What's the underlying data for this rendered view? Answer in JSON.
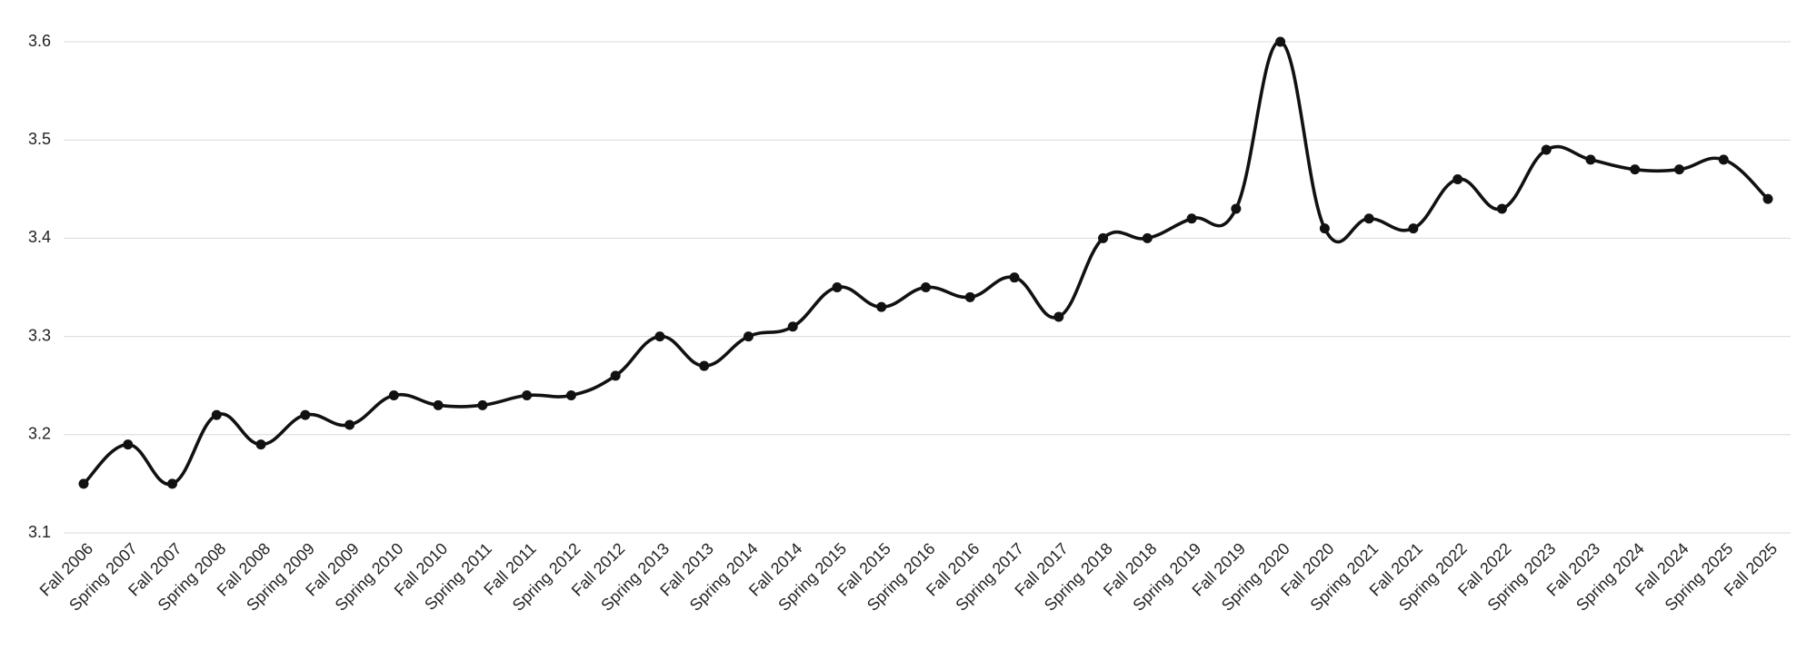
{
  "chart_data": {
    "type": "line",
    "categories": [
      "Fall 2006",
      "Spring 2007",
      "Fall 2007",
      "Spring 2008",
      "Fall 2008",
      "Spring 2009",
      "Fall 2009",
      "Spring 2010",
      "Fall 2010",
      "Spring 2011",
      "Fall 2011",
      "Spring 2012",
      "Fall 2012",
      "Spring 2013",
      "Fall 2013",
      "Spring 2014",
      "Fall 2014",
      "Spring 2015",
      "Fall 2015",
      "Spring 2016",
      "Fall 2016",
      "Spring 2017",
      "Fall 2017",
      "Spring 2018",
      "Fall 2018",
      "Spring 2019",
      "Fall 2019",
      "Spring 2020",
      "Fall 2020",
      "Spring 2021",
      "Fall 2021",
      "Spring 2022",
      "Fall 2022",
      "Spring 2023",
      "Fall 2023",
      "Spring 2024",
      "Fall 2024",
      "Spring 2025",
      "Fall 2025"
    ],
    "values": [
      3.15,
      3.19,
      3.15,
      3.22,
      3.19,
      3.22,
      3.21,
      3.24,
      3.23,
      3.23,
      3.24,
      3.24,
      3.26,
      3.3,
      3.27,
      3.3,
      3.31,
      3.35,
      3.33,
      3.35,
      3.34,
      3.36,
      3.32,
      3.4,
      3.4,
      3.42,
      3.43,
      3.6,
      3.41,
      3.42,
      3.41,
      3.46,
      3.43,
      3.49,
      3.48,
      3.47,
      3.47,
      3.48,
      3.44
    ],
    "color": "#111111",
    "ylim": [
      3.1,
      3.6
    ],
    "yticks": [
      3.1,
      3.2,
      3.3,
      3.4,
      3.5,
      3.6
    ],
    "grid": true
  }
}
